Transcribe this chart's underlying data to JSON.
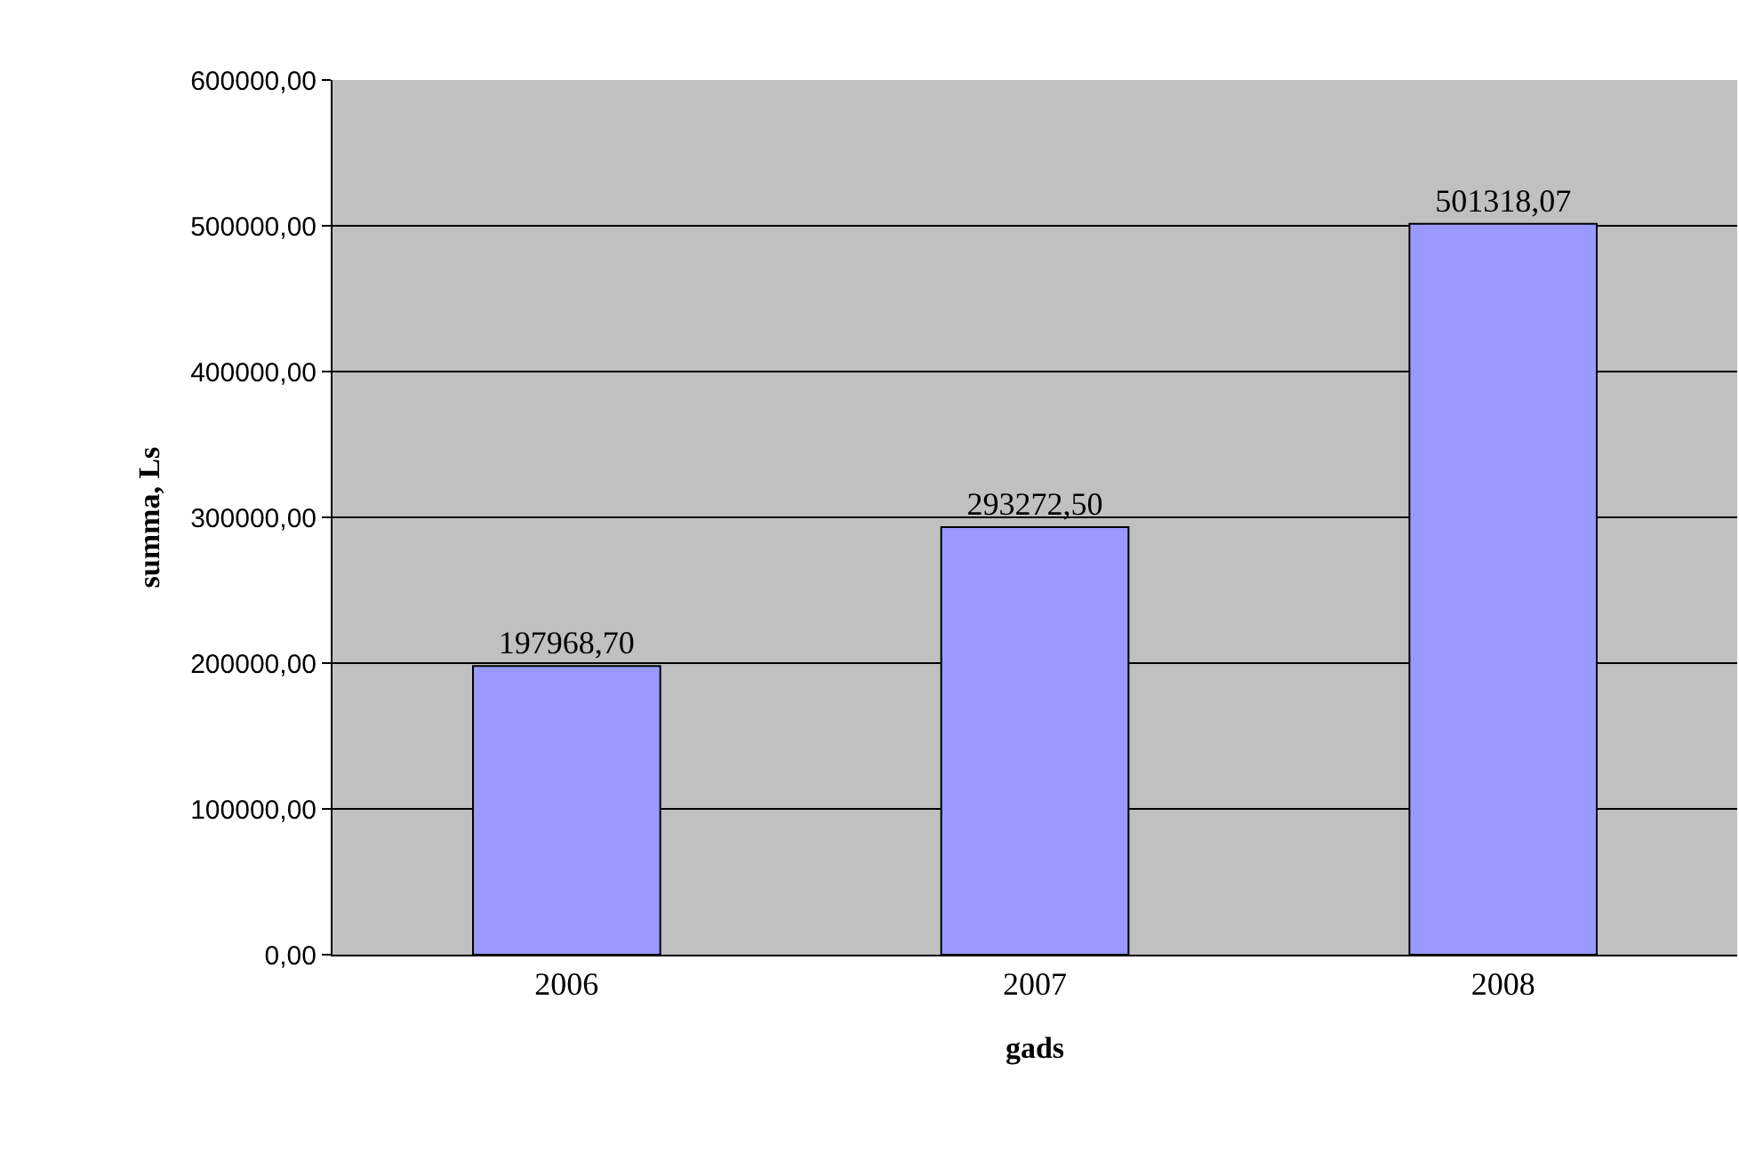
{
  "chart_data": {
    "type": "bar",
    "xlabel": "gads",
    "ylabel": "summa, Ls",
    "categories": [
      "2006",
      "2007",
      "2008"
    ],
    "values": [
      197968.7,
      293272.5,
      501318.07
    ],
    "value_labels": [
      "197968,70",
      "293272,50",
      "501318,07"
    ],
    "color": "#9999ff",
    "ylim": [
      0,
      600000
    ],
    "yticks": [
      {
        "value": 0,
        "label": "0,00"
      },
      {
        "value": 100000,
        "label": "100000,00"
      },
      {
        "value": 200000,
        "label": "200000,00"
      },
      {
        "value": 300000,
        "label": "300000,00"
      },
      {
        "value": 400000,
        "label": "400000,00"
      },
      {
        "value": 500000,
        "label": "500000,00"
      },
      {
        "value": 600000,
        "label": "600000,00"
      }
    ],
    "grid": "y",
    "legend": false
  }
}
